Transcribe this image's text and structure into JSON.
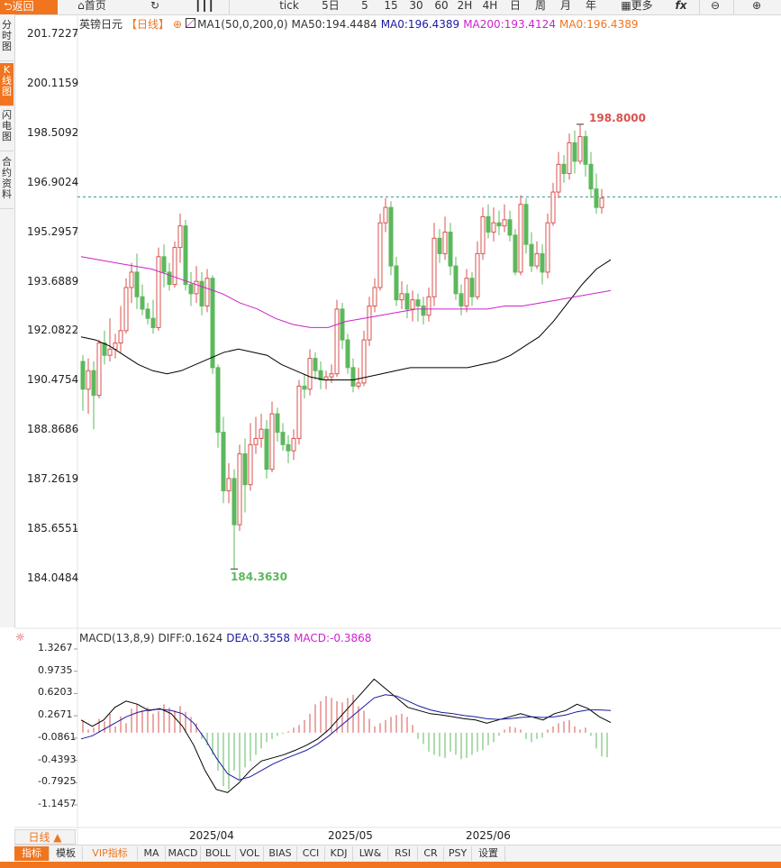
{
  "toolbar": {
    "back": "返回",
    "items": [
      "首页",
      "",
      "",
      "tick",
      "5日",
      "5",
      "15",
      "30",
      "60",
      "2H",
      "4H",
      "日",
      "周",
      "月",
      "年",
      "更多",
      "",
      "",
      ""
    ]
  },
  "left_tabs": [
    "分时图",
    "K线图",
    "闪电图",
    "合约资料"
  ],
  "legend": {
    "title": "英镑日元",
    "period": "【日线】",
    "ma_name": "MA1(50,0,200,0)",
    "ma50": "MA50:194.4484",
    "ma0a": "MA0:196.4389",
    "ma200": "MA200:193.4124",
    "ma0b": "MA0:196.4389"
  },
  "colors": {
    "up": "#d9534f",
    "down": "#5cb85c",
    "ma50": "#000000",
    "ma200": "#cc22cc",
    "accent": "#f0751e",
    "dea": "#1a1aa0",
    "diff": "#000000"
  },
  "price_axis": [
    "201.7227",
    "200.1159",
    "198.5092",
    "196.9024",
    "195.2957",
    "193.6889",
    "192.0822",
    "190.4754",
    "188.8686",
    "187.2619",
    "185.6551",
    "184.0484"
  ],
  "high_label": "198.8000",
  "low_label": "184.3630",
  "macd_legend": {
    "name": "MACD(13,8,9)",
    "diff": "DIFF:0.1624",
    "dea": "DEA:0.3558",
    "macd": "MACD:-0.3868"
  },
  "macd_axis": [
    "1.3267",
    "0.9735",
    "0.6203",
    "0.2671",
    "-0.0861",
    "-0.4393",
    "-0.7925",
    "-1.1457"
  ],
  "period_button": "日线 ▲",
  "x_labels": [
    "2025/04",
    "2025/05",
    "2025/06"
  ],
  "bottom_tabs": [
    "指标",
    "模板",
    "VIP指标",
    "MA",
    "MACD",
    "BOLL",
    "VOL",
    "BIAS",
    "CCI",
    "KDJ",
    "LW&",
    "RSI",
    "CR",
    "PSY",
    "设置"
  ],
  "chart_data": {
    "type": "candlestick",
    "title": "英镑日元",
    "price_range": [
      184.0484,
      201.7227
    ],
    "current_price": 196.44,
    "candles": [
      [
        191.1,
        190.2,
        191.3,
        189.5
      ],
      [
        190.2,
        190.8,
        191.2,
        189.4
      ],
      [
        190.8,
        190.0,
        191.1,
        188.9
      ],
      [
        190.0,
        191.7,
        191.8,
        189.9
      ],
      [
        191.7,
        191.3,
        192.1,
        191.0
      ],
      [
        191.3,
        191.5,
        192.5,
        191.1
      ],
      [
        191.5,
        191.7,
        192.0,
        191.2
      ],
      [
        191.7,
        192.1,
        192.9,
        191.4
      ],
      [
        192.1,
        193.5,
        193.8,
        192.0
      ],
      [
        193.5,
        194.0,
        194.3,
        193.0
      ],
      [
        194.0,
        193.2,
        194.6,
        192.8
      ],
      [
        193.2,
        192.8,
        193.6,
        192.6
      ],
      [
        192.8,
        192.5,
        193.0,
        192.3
      ],
      [
        192.5,
        192.2,
        193.1,
        192.0
      ],
      [
        192.2,
        194.5,
        194.8,
        192.1
      ],
      [
        194.5,
        194.0,
        194.9,
        193.5
      ],
      [
        194.0,
        193.6,
        194.3,
        193.4
      ],
      [
        193.6,
        194.8,
        195.0,
        193.5
      ],
      [
        194.8,
        195.5,
        195.9,
        194.3
      ],
      [
        195.5,
        193.6,
        195.7,
        193.4
      ],
      [
        193.6,
        193.3,
        194.0,
        192.9
      ],
      [
        193.3,
        193.7,
        194.2,
        193.0
      ],
      [
        193.7,
        192.9,
        194.0,
        192.6
      ],
      [
        192.9,
        193.8,
        194.1,
        192.7
      ],
      [
        193.8,
        190.9,
        193.9,
        190.7
      ],
      [
        190.9,
        188.8,
        191.0,
        188.3
      ],
      [
        188.8,
        186.9,
        189.3,
        186.5
      ],
      [
        186.9,
        187.3,
        187.8,
        186.5
      ],
      [
        187.3,
        185.8,
        187.6,
        184.363
      ],
      [
        185.8,
        188.1,
        188.4,
        185.6
      ],
      [
        188.1,
        187.1,
        188.6,
        186.2
      ],
      [
        187.1,
        188.4,
        189.1,
        186.9
      ],
      [
        188.4,
        188.6,
        189.3,
        188.1
      ],
      [
        188.6,
        188.9,
        189.4,
        188.3
      ],
      [
        188.9,
        187.6,
        189.2,
        187.3
      ],
      [
        187.6,
        189.4,
        189.8,
        187.5
      ],
      [
        189.4,
        188.8,
        189.6,
        188.5
      ],
      [
        188.8,
        188.4,
        189.1,
        188.2
      ],
      [
        188.4,
        188.2,
        188.7,
        187.8
      ],
      [
        188.2,
        188.6,
        188.9,
        187.9
      ],
      [
        188.6,
        190.3,
        190.5,
        188.4
      ],
      [
        190.3,
        190.2,
        190.7,
        189.9
      ],
      [
        190.2,
        191.2,
        191.5,
        190.0
      ],
      [
        191.2,
        190.8,
        191.4,
        190.5
      ],
      [
        190.8,
        190.5,
        191.1,
        190.2
      ],
      [
        190.5,
        190.6,
        190.8,
        190.2
      ],
      [
        190.6,
        190.7,
        191.0,
        190.4
      ],
      [
        190.7,
        192.8,
        193.1,
        190.6
      ],
      [
        192.8,
        191.8,
        193.0,
        191.5
      ],
      [
        191.8,
        190.9,
        192.0,
        190.7
      ],
      [
        190.9,
        190.3,
        191.2,
        190.1
      ],
      [
        190.3,
        190.4,
        190.9,
        190.2
      ],
      [
        190.4,
        191.8,
        192.1,
        190.3
      ],
      [
        191.8,
        192.9,
        193.2,
        191.6
      ],
      [
        192.9,
        193.5,
        193.8,
        192.7
      ],
      [
        193.5,
        195.6,
        195.9,
        193.4
      ],
      [
        195.6,
        196.1,
        196.4,
        195.3
      ],
      [
        196.1,
        194.2,
        196.3,
        193.9
      ],
      [
        194.2,
        193.1,
        194.5,
        192.9
      ],
      [
        193.1,
        193.3,
        193.7,
        192.8
      ],
      [
        193.3,
        192.8,
        193.6,
        192.5
      ],
      [
        192.8,
        193.1,
        193.4,
        192.4
      ],
      [
        193.1,
        192.9,
        193.3,
        192.4
      ],
      [
        192.9,
        192.6,
        193.2,
        192.3
      ],
      [
        192.6,
        193.2,
        193.5,
        192.4
      ],
      [
        193.2,
        195.1,
        195.6,
        192.9
      ],
      [
        195.1,
        194.6,
        195.4,
        194.3
      ],
      [
        194.6,
        195.3,
        195.8,
        194.4
      ],
      [
        195.3,
        194.2,
        195.6,
        193.9
      ],
      [
        194.2,
        193.3,
        194.5,
        193.1
      ],
      [
        193.3,
        192.9,
        193.6,
        192.6
      ],
      [
        192.9,
        193.8,
        194.1,
        192.7
      ],
      [
        193.8,
        193.2,
        194.0,
        192.9
      ],
      [
        193.2,
        194.6,
        195.0,
        193.1
      ],
      [
        194.6,
        195.8,
        196.1,
        194.4
      ],
      [
        195.8,
        195.3,
        196.2,
        195.1
      ],
      [
        195.3,
        195.6,
        196.1,
        195.0
      ],
      [
        195.6,
        195.5,
        196.0,
        195.2
      ],
      [
        195.5,
        195.7,
        196.2,
        195.3
      ],
      [
        195.7,
        195.2,
        196.0,
        195.0
      ],
      [
        195.2,
        194.0,
        195.4,
        193.9
      ],
      [
        194.0,
        196.2,
        196.5,
        193.9
      ],
      [
        196.2,
        194.9,
        196.4,
        194.6
      ],
      [
        194.9,
        194.2,
        195.3,
        194.0
      ],
      [
        194.2,
        194.6,
        195.0,
        194.1
      ],
      [
        194.6,
        194.0,
        194.9,
        193.6
      ],
      [
        194.0,
        195.6,
        195.9,
        193.8
      ],
      [
        195.6,
        196.6,
        196.9,
        195.5
      ],
      [
        196.6,
        197.5,
        197.9,
        196.4
      ],
      [
        197.5,
        197.2,
        197.8,
        196.9
      ],
      [
        197.2,
        198.2,
        198.5,
        197.0
      ],
      [
        198.2,
        197.6,
        198.6,
        197.2
      ],
      [
        197.6,
        198.4,
        198.8,
        197.5
      ],
      [
        198.4,
        197.5,
        198.6,
        197.1
      ],
      [
        197.5,
        196.7,
        197.9,
        196.4
      ],
      [
        196.7,
        196.1,
        197.2,
        195.9
      ],
      [
        196.1,
        196.4,
        196.7,
        195.9
      ]
    ],
    "ma50": [
      191.9,
      191.8,
      191.6,
      191.3,
      191.0,
      190.8,
      190.7,
      190.8,
      191.0,
      191.2,
      191.4,
      191.5,
      191.4,
      191.3,
      191.0,
      190.8,
      190.6,
      190.5,
      190.5,
      190.5,
      190.6,
      190.7,
      190.8,
      190.9,
      190.9,
      190.9,
      190.9,
      190.9,
      191.0,
      191.1,
      191.3,
      191.6,
      191.9,
      192.4,
      193.0,
      193.6,
      194.1,
      194.4
    ],
    "ma200": [
      194.5,
      194.4,
      194.3,
      194.2,
      194.1,
      193.9,
      193.7,
      193.5,
      193.3,
      193.0,
      192.8,
      192.5,
      192.3,
      192.2,
      192.2,
      192.4,
      192.5,
      192.6,
      192.7,
      192.8,
      192.8,
      192.8,
      192.8,
      192.8,
      192.9,
      192.9,
      193.0,
      193.1,
      193.2,
      193.3,
      193.4
    ],
    "macd_range": [
      -1.1457,
      1.3267
    ],
    "macd_hist": [
      0.2,
      0.05,
      0.08,
      0.22,
      0.18,
      0.3,
      0.1,
      0.26,
      0.15,
      0.38,
      0.45,
      0.36,
      0.4,
      0.3,
      0.34,
      0.45,
      0.4,
      0.35,
      0.42,
      0.33,
      0.25,
      0.15,
      -0.1,
      -0.2,
      -0.35,
      -0.6,
      -0.85,
      -0.9,
      -0.6,
      -0.75,
      -0.55,
      -0.45,
      -0.35,
      -0.25,
      -0.15,
      -0.1,
      -0.05,
      -0.02,
      0.02,
      0.08,
      0.12,
      0.2,
      0.3,
      0.45,
      0.5,
      0.58,
      0.55,
      0.5,
      0.48,
      0.55,
      0.6,
      0.42,
      0.35,
      0.22,
      0.1,
      0.15,
      0.2,
      0.25,
      0.28,
      0.3,
      0.25,
      0.12,
      -0.1,
      -0.18,
      -0.3,
      -0.35,
      -0.38,
      -0.4,
      -0.3,
      -0.35,
      -0.42,
      -0.4,
      -0.35,
      -0.3,
      -0.28,
      -0.2,
      -0.15,
      -0.05,
      0.05,
      0.1,
      0.08,
      0.05,
      -0.1,
      -0.15,
      -0.1,
      -0.08,
      0.05,
      0.1,
      0.15,
      0.18,
      0.2,
      0.1,
      0.05,
      0.08,
      -0.05,
      -0.25,
      -0.38,
      -0.39
    ],
    "macd_diff": [
      0.2,
      0.1,
      0.2,
      0.4,
      0.5,
      0.45,
      0.35,
      0.38,
      0.3,
      0.1,
      -0.2,
      -0.6,
      -0.9,
      -0.95,
      -0.8,
      -0.6,
      -0.45,
      -0.4,
      -0.35,
      -0.28,
      -0.2,
      -0.1,
      0.05,
      0.25,
      0.45,
      0.65,
      0.85,
      0.7,
      0.55,
      0.4,
      0.35,
      0.3,
      0.28,
      0.25,
      0.22,
      0.2,
      0.15,
      0.2,
      0.25,
      0.3,
      0.25,
      0.2,
      0.3,
      0.35,
      0.45,
      0.38,
      0.25,
      0.16
    ],
    "macd_dea": [
      -0.1,
      -0.05,
      0.05,
      0.15,
      0.25,
      0.32,
      0.36,
      0.37,
      0.35,
      0.3,
      0.15,
      -0.1,
      -0.4,
      -0.65,
      -0.75,
      -0.7,
      -0.6,
      -0.5,
      -0.42,
      -0.35,
      -0.28,
      -0.18,
      -0.05,
      0.1,
      0.25,
      0.4,
      0.55,
      0.6,
      0.58,
      0.5,
      0.42,
      0.36,
      0.32,
      0.3,
      0.27,
      0.25,
      0.22,
      0.21,
      0.22,
      0.24,
      0.25,
      0.24,
      0.25,
      0.28,
      0.33,
      0.36,
      0.36,
      0.35
    ]
  }
}
